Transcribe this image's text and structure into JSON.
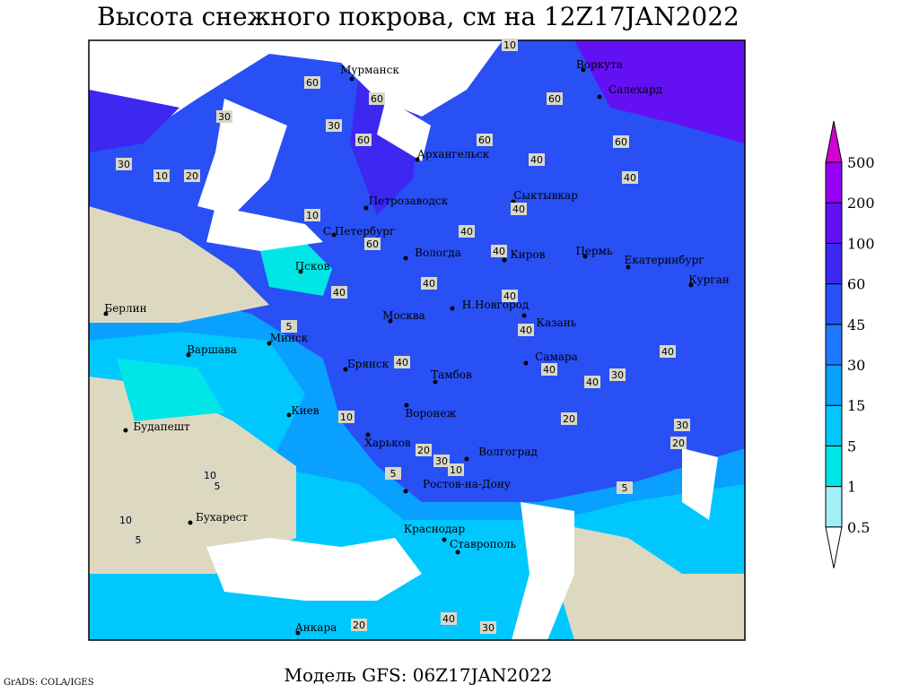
{
  "header": {
    "title": "Высота снежного покрова, см на 12Z17JAN2022"
  },
  "footer": {
    "model": "Модель GFS: 06Z17JAN2022",
    "credit": "GrADS: COLA/IGES"
  },
  "legend": {
    "levels": [
      0.5,
      1,
      5,
      15,
      30,
      45,
      60,
      100,
      200,
      500
    ],
    "colors": [
      "#ffffff",
      "#a0f0f6",
      "#00e6e6",
      "#00c8ff",
      "#0aa0ff",
      "#1e78ff",
      "#2850f5",
      "#3c28f0",
      "#6410f5",
      "#9600f5",
      "#d200d2"
    ]
  },
  "cities": [
    "Мурманск",
    "Воркута",
    "Салехард",
    "Архангельск",
    "Сыктывкар",
    "Петрозаводск",
    "С.Петербург",
    "Вологда",
    "Киров",
    "Пермь",
    "Екатеринбург",
    "Курган",
    "Псков",
    "Берлин",
    "Н.Новгород",
    "Москва",
    "Казань",
    "Минск",
    "Варшава",
    "Брянск",
    "Самара",
    "Тамбов",
    "Киев",
    "Воронеж",
    "Будапешт",
    "Харьков",
    "Волгоград",
    "Ростов-на-Дону",
    "Бухарест",
    "Краснодар",
    "Ставрополь",
    "Анкара"
  ],
  "contour_labels": [
    10,
    60,
    60,
    30,
    60,
    40,
    30,
    60,
    60,
    60,
    40,
    30,
    20,
    10,
    40,
    40,
    40,
    60,
    40,
    10,
    40,
    5,
    40,
    40,
    40,
    40,
    40,
    30,
    40,
    20,
    10,
    20,
    30,
    10,
    5,
    10,
    5,
    10,
    5,
    20,
    40,
    30,
    20,
    30,
    5
  ]
}
